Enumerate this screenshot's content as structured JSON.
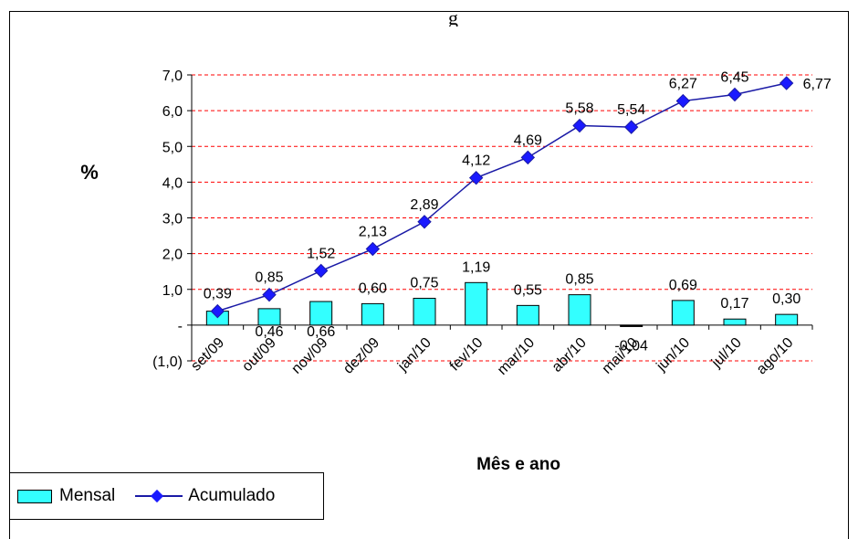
{
  "title_fragment": "g",
  "chart_data": {
    "type": "bar+line",
    "categories": [
      "set/09",
      "out/09",
      "nov/09",
      "dez/09",
      "jan/10",
      "fev/10",
      "mar/10",
      "abr/10",
      "mai/10",
      "jun/10",
      "jul/10",
      "ago/10"
    ],
    "series": [
      {
        "name": "Mensal",
        "type": "bar",
        "values": [
          0.39,
          0.46,
          0.66,
          0.6,
          0.75,
          1.19,
          0.55,
          0.85,
          -0.04,
          0.69,
          0.17,
          0.3
        ],
        "labels": [
          "",
          "0,46",
          "0,66",
          "0,60",
          "0,75",
          "1,19",
          "0,55",
          "0,85",
          "-0,04",
          "0,69",
          "0,17",
          "0,30"
        ],
        "color": "#33ffff"
      },
      {
        "name": "Acumulado",
        "type": "line",
        "values": [
          0.39,
          0.85,
          1.52,
          2.13,
          2.89,
          4.12,
          4.69,
          5.58,
          5.54,
          6.27,
          6.45,
          6.77
        ],
        "labels": [
          "0,39",
          "0,85",
          "1,52",
          "2,13",
          "2,89",
          "4,12",
          "4,69",
          "5,58",
          "5,54",
          "6,27",
          "6,45",
          "6,77"
        ],
        "color": "#1a1aa6"
      }
    ],
    "ylabel": "%",
    "xlabel": "Mês e ano",
    "ylim": [
      -1,
      7
    ],
    "yticks": [
      -1,
      0,
      1,
      2,
      3,
      4,
      5,
      6,
      7
    ],
    "ytick_labels": [
      "(1,0)",
      "-",
      "1,0",
      "2,0",
      "3,0",
      "4,0",
      "5,0",
      "6,0",
      "7,0"
    ],
    "grid": "horizontal dashed",
    "grid_color": "#ff0000",
    "legend_position": "bottom-left"
  },
  "legend": {
    "mensal": "Mensal",
    "acumulado": "Acumulado"
  }
}
